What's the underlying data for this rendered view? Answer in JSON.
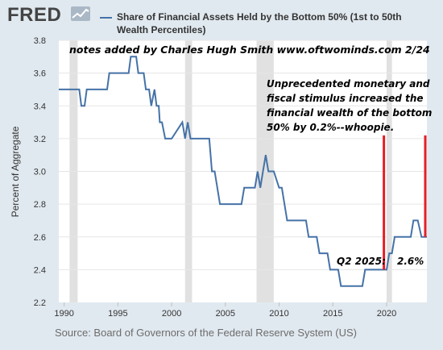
{
  "header": {
    "logo_text": "FRED",
    "legend_line1": "Share of Financial Assets Held by the Bottom 50% (1st to 50th",
    "legend_line2": "Wealth Percentiles)",
    "series_color": "#4572a7"
  },
  "source": "Source: Board of Governors of the Federal Reserve System (US)",
  "annotations": {
    "credit": "notes added by Charles Hugh Smith www.oftwominds.com 2/24",
    "stimulus_line1": "Unprecedented monetary and",
    "stimulus_line2": "fiscal stimulus increased the",
    "stimulus_line3": "financial wealth of the bottom",
    "stimulus_line4": "50% by 0.2%--whoopie.",
    "q2_label": "Q2 2025:",
    "q2_value": "2.6%",
    "marker_color": "#e41e26"
  },
  "chart_data": {
    "type": "line",
    "ylabel": "Percent of Aggregate",
    "xlabel": "",
    "xlim": [
      1989.5,
      2023.75
    ],
    "ylim": [
      2.2,
      3.8
    ],
    "x_ticks": [
      1990,
      1995,
      2000,
      2005,
      2010,
      2015,
      2020
    ],
    "y_ticks": [
      2.2,
      2.4,
      2.6,
      2.8,
      3.0,
      3.2,
      3.4,
      3.6,
      3.8
    ],
    "y_tick_labels": [
      "2.2",
      "2.4",
      "2.6",
      "2.8",
      "3.0",
      "3.2",
      "3.4",
      "3.6",
      "3.8"
    ],
    "recessions": [
      [
        1990.5,
        1991.25
      ],
      [
        2001.25,
        2001.9
      ],
      [
        2007.9,
        2009.5
      ],
      [
        2020.0,
        2020.5
      ]
    ],
    "series": [
      {
        "color": "#4572a7",
        "x": [
          1989.5,
          1991.4,
          1991.6,
          1991.9,
          1992.1,
          1994.0,
          1994.2,
          1996.0,
          1996.2,
          1996.7,
          1996.9,
          1997.4,
          1997.6,
          1997.9,
          1998.1,
          1998.4,
          1998.6,
          1998.8,
          1998.9,
          1999.1,
          1999.4,
          1999.6,
          1999.8,
          2000.0,
          2001.0,
          2001.25,
          2001.5,
          2001.75,
          2002.0,
          2003.5,
          2003.75,
          2004.0,
          2004.5,
          2005.0,
          2005.25,
          2006.5,
          2006.75,
          2007.0,
          2007.75,
          2008.0,
          2008.25,
          2008.5,
          2008.75,
          2009.0,
          2009.25,
          2009.5,
          2010.0,
          2010.25,
          2010.5,
          2010.75,
          2011.0,
          2012.5,
          2012.75,
          2013.5,
          2013.75,
          2014.5,
          2014.75,
          2015.5,
          2015.75,
          2017.75,
          2018.0,
          2019.75,
          2020.0,
          2020.25,
          2020.5,
          2020.75,
          2021.0,
          2022.25,
          2022.5,
          2022.9,
          2023.25,
          2023.75
        ],
        "values": [
          3.5,
          3.5,
          3.4,
          3.4,
          3.5,
          3.5,
          3.6,
          3.6,
          3.7,
          3.7,
          3.6,
          3.6,
          3.5,
          3.5,
          3.4,
          3.5,
          3.4,
          3.4,
          3.3,
          3.3,
          3.2,
          3.2,
          3.2,
          3.2,
          3.3,
          3.2,
          3.3,
          3.2,
          3.2,
          3.2,
          3.0,
          3.0,
          2.8,
          2.8,
          2.8,
          2.8,
          2.9,
          2.9,
          2.9,
          3.0,
          2.9,
          3.0,
          3.1,
          3.0,
          3.0,
          3.0,
          2.9,
          2.9,
          2.8,
          2.7,
          2.7,
          2.7,
          2.6,
          2.6,
          2.5,
          2.5,
          2.4,
          2.4,
          2.3,
          2.3,
          2.4,
          2.4,
          2.4,
          2.5,
          2.5,
          2.6,
          2.6,
          2.6,
          2.7,
          2.7,
          2.6,
          2.6
        ]
      }
    ]
  }
}
